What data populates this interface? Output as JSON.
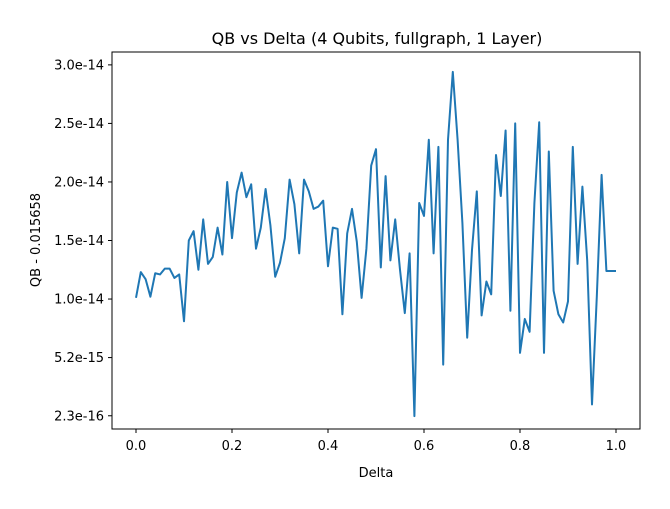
{
  "chart_data": {
    "type": "line",
    "title": "QB vs Delta (4 Qubits, fullgraph, 1 Layer)",
    "xlabel": "Delta",
    "ylabel": "QB - 0.015658",
    "xlim": [
      -0.05,
      1.05
    ],
    "ylim": [
      -0.9,
      31.3
    ],
    "y_units": "1e-15",
    "grid": false,
    "x_ticks": [
      {
        "value": 0.0,
        "label": "0.0"
      },
      {
        "value": 0.2,
        "label": "0.2"
      },
      {
        "value": 0.4,
        "label": "0.4"
      },
      {
        "value": 0.6,
        "label": "0.6"
      },
      {
        "value": 0.8,
        "label": "0.8"
      },
      {
        "value": 1.0,
        "label": "1.0"
      }
    ],
    "y_ticks": [
      {
        "value": 0.23,
        "label": "2.3e-16"
      },
      {
        "value": 5.2,
        "label": "5.2e-15"
      },
      {
        "value": 10.2,
        "label": "1.0e-14"
      },
      {
        "value": 15.2,
        "label": "1.5e-14"
      },
      {
        "value": 20.2,
        "label": "2.0e-14"
      },
      {
        "value": 25.2,
        "label": "2.5e-14"
      },
      {
        "value": 30.2,
        "label": "3.0e-14"
      }
    ],
    "series": [
      {
        "color": "#1f77b4",
        "x": [
          0.0,
          0.01,
          0.02,
          0.03,
          0.04,
          0.05,
          0.06,
          0.07,
          0.08,
          0.09,
          0.1,
          0.11,
          0.12,
          0.13,
          0.14,
          0.15,
          0.16,
          0.17,
          0.18,
          0.19,
          0.2,
          0.21,
          0.22,
          0.23,
          0.24,
          0.25,
          0.26,
          0.27,
          0.28,
          0.29,
          0.3,
          0.31,
          0.32,
          0.33,
          0.34,
          0.35,
          0.36,
          0.37,
          0.38,
          0.39,
          0.4,
          0.41,
          0.42,
          0.43,
          0.44,
          0.45,
          0.46,
          0.47,
          0.48,
          0.49,
          0.5,
          0.51,
          0.52,
          0.53,
          0.54,
          0.55,
          0.56,
          0.57,
          0.58,
          0.59,
          0.6,
          0.61,
          0.62,
          0.63,
          0.64,
          0.65,
          0.66,
          0.67,
          0.68,
          0.69,
          0.7,
          0.71,
          0.72,
          0.73,
          0.74,
          0.75,
          0.76,
          0.77,
          0.78,
          0.79,
          0.8,
          0.81,
          0.82,
          0.83,
          0.84,
          0.85,
          0.86,
          0.87,
          0.88,
          0.89,
          0.9,
          0.91,
          0.92,
          0.93,
          0.94,
          0.95,
          0.96,
          0.97,
          0.98,
          0.99,
          1.0
        ],
        "y": [
          10.3,
          12.5,
          11.9,
          10.4,
          12.4,
          12.3,
          12.8,
          12.8,
          12.0,
          12.3,
          8.3,
          15.2,
          16.0,
          12.7,
          17.0,
          13.2,
          13.8,
          16.3,
          14.0,
          20.2,
          15.4,
          19.3,
          21.0,
          18.9,
          20.0,
          14.5,
          16.3,
          19.6,
          16.5,
          12.1,
          13.3,
          15.4,
          20.4,
          18.3,
          14.1,
          20.4,
          19.4,
          17.9,
          18.1,
          18.6,
          13.0,
          16.3,
          16.2,
          8.9,
          15.8,
          17.9,
          15.1,
          10.3,
          14.5,
          21.6,
          23.0,
          12.9,
          20.7,
          13.5,
          17.0,
          12.7,
          9.0,
          14.1,
          0.2,
          18.4,
          17.3,
          23.8,
          14.1,
          23.2,
          4.6,
          23.8,
          29.6,
          23.8,
          16.7,
          6.9,
          14.4,
          19.4,
          8.8,
          11.7,
          10.6,
          22.5,
          19.0,
          24.6,
          9.2,
          25.2,
          5.6,
          8.5,
          7.4,
          18.4,
          25.3,
          5.6,
          22.8,
          10.9,
          8.9,
          8.2,
          10.0,
          23.2,
          13.2,
          19.8,
          13.5,
          1.2,
          10.4,
          20.8,
          12.6,
          12.6,
          12.6
        ]
      }
    ]
  }
}
